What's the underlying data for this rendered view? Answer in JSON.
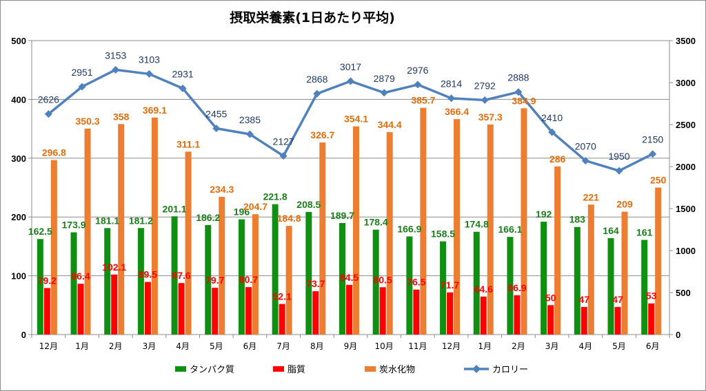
{
  "chart_data": {
    "type": "bar",
    "title": "摂取栄養素(1日あたり平均)",
    "categories": [
      "12月",
      "1月",
      "2月",
      "3月",
      "4月",
      "5月",
      "6月",
      "7月",
      "8月",
      "9月",
      "10月",
      "11月",
      "12月",
      "1月",
      "2月",
      "3月",
      "4月",
      "5月",
      "6月"
    ],
    "y_left": {
      "min": 0,
      "max": 500,
      "ticks": [
        "0",
        "100",
        "200",
        "300",
        "400",
        "500"
      ]
    },
    "y_right": {
      "min": 0,
      "max": 3500,
      "ticks": [
        "0",
        "500",
        "1000",
        "1500",
        "2000",
        "2500",
        "3000",
        "3500"
      ]
    },
    "grid": true,
    "legend_position": "bottom",
    "series": [
      {
        "name": "タンパク質",
        "type": "bar",
        "axis": "left",
        "color": "#109010",
        "values": [
          162.5,
          173.9,
          181.1,
          181.2,
          201.1,
          186.2,
          196,
          221.8,
          208.5,
          189.7,
          178.4,
          166.9,
          158.5,
          174.8,
          166.1,
          192,
          183,
          164,
          161
        ],
        "labels": [
          "162.5",
          "173.9",
          "181.1",
          "181.2",
          "201.1",
          "186.2",
          "196",
          "221.8",
          "208.5",
          "189.7",
          "178.4",
          "166.9",
          "158.5",
          "174.8",
          "166.1",
          "192",
          "183",
          "164",
          "161"
        ]
      },
      {
        "name": "脂質",
        "type": "bar",
        "axis": "left",
        "color": "#ff0000",
        "values": [
          79.2,
          86.4,
          102.1,
          89.5,
          87.6,
          79.7,
          80.7,
          52.1,
          73.7,
          84.5,
          80.5,
          76.5,
          71.7,
          64.6,
          66.9,
          50,
          47,
          47,
          53
        ],
        "labels": [
          "79.2",
          "86.4",
          "102.1",
          "89.5",
          "87.6",
          "79.7",
          "80.7",
          "52.1",
          "73.7",
          "84.5",
          "80.5",
          "76.5",
          "71.7",
          "64.6",
          "66.9",
          "50",
          "47",
          "47",
          "53"
        ]
      },
      {
        "name": "炭水化物",
        "type": "bar",
        "axis": "left",
        "color": "#ed7d31",
        "values": [
          296.8,
          350.3,
          358,
          369.1,
          311.1,
          234.3,
          204.7,
          184.8,
          326.7,
          354.1,
          344.4,
          385.7,
          366.4,
          357.3,
          384.9,
          286,
          221,
          209,
          250
        ],
        "labels": [
          "296.8",
          "350.3",
          "358",
          "369.1",
          "311.1",
          "234.3",
          "204.7",
          "184.8",
          "326.7",
          "354.1",
          "344.4",
          "385.7",
          "366.4",
          "357.3",
          "384.9",
          "286",
          "221",
          "209",
          "250"
        ]
      },
      {
        "name": "カロリー",
        "type": "line",
        "axis": "right",
        "color": "#4f81bd",
        "values": [
          2626,
          2951,
          3153,
          3103,
          2931,
          2455,
          2385,
          2127,
          2868,
          3017,
          2879,
          2976,
          2814,
          2792,
          2888,
          2410,
          2070,
          1950,
          2150
        ],
        "labels": [
          "2626",
          "2951",
          "3153",
          "3103",
          "2931",
          "2455",
          "2385",
          "2127",
          "2868",
          "3017",
          "2879",
          "2976",
          "2814",
          "2792",
          "2888",
          "2410",
          "2070",
          "1950",
          "2150"
        ]
      }
    ]
  }
}
